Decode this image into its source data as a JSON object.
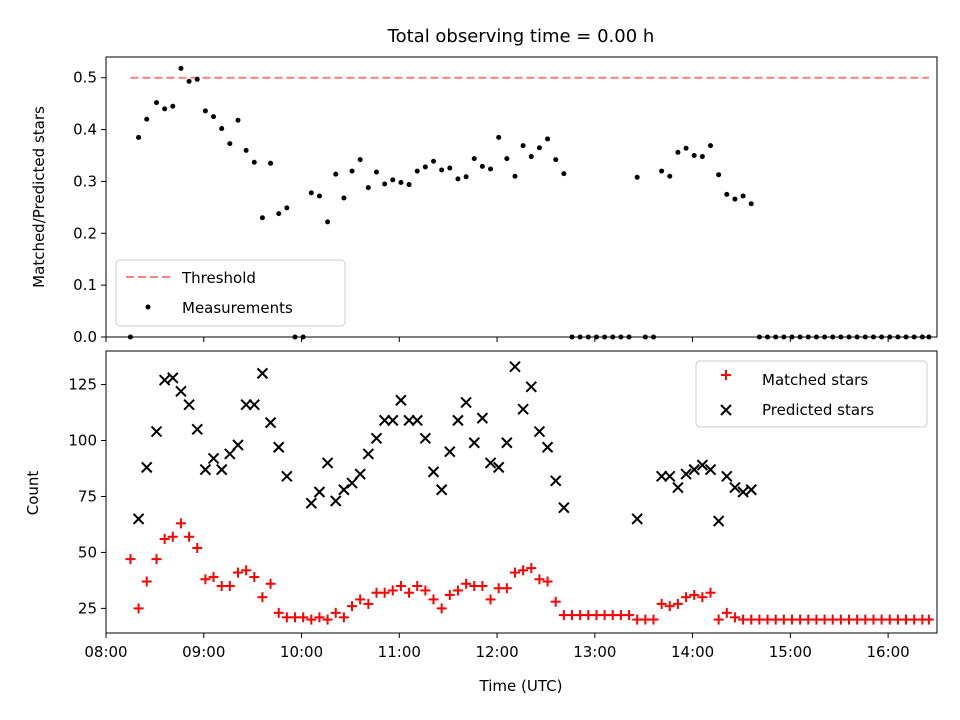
{
  "chart_data": [
    {
      "type": "scatter",
      "title": "Total observing time = 0.00 h",
      "xlabel": "",
      "ylabel": "Matched/Predicted stars",
      "xlim": [
        "08:00",
        "16:30"
      ],
      "ylim": [
        0,
        0.54
      ],
      "yticks": [
        "0.0",
        "0.1",
        "0.2",
        "0.3",
        "0.4",
        "0.5"
      ],
      "legend_position": "lower-left",
      "threshold": {
        "name": "Threshold",
        "value": 0.5,
        "x_range": [
          "08:15",
          "16:25"
        ],
        "color": "#f4817f"
      },
      "series": [
        {
          "name": "Measurements",
          "color": "#000000",
          "points": [
            [
              "08:15",
              0.0
            ],
            [
              "08:20",
              0.385
            ],
            [
              "08:25",
              0.42
            ],
            [
              "08:31",
              0.452
            ],
            [
              "08:36",
              0.44
            ],
            [
              "08:41",
              0.445
            ],
            [
              "08:46",
              0.518
            ],
            [
              "08:51",
              0.493
            ],
            [
              "08:56",
              0.497
            ],
            [
              "09:01",
              0.436
            ],
            [
              "09:06",
              0.425
            ],
            [
              "09:11",
              0.402
            ],
            [
              "09:16",
              0.373
            ],
            [
              "09:21",
              0.418
            ],
            [
              "09:26",
              0.36
            ],
            [
              "09:31",
              0.337
            ],
            [
              "09:36",
              0.23
            ],
            [
              "09:41",
              0.335
            ],
            [
              "09:46",
              0.238
            ],
            [
              "09:51",
              0.249
            ],
            [
              "09:56",
              0.0
            ],
            [
              "10:01",
              0.0
            ],
            [
              "10:06",
              0.278
            ],
            [
              "10:11",
              0.272
            ],
            [
              "10:16",
              0.222
            ],
            [
              "10:21",
              0.314
            ],
            [
              "10:26",
              0.268
            ],
            [
              "10:31",
              0.32
            ],
            [
              "10:36",
              0.342
            ],
            [
              "10:41",
              0.288
            ],
            [
              "10:46",
              0.318
            ],
            [
              "10:51",
              0.295
            ],
            [
              "10:56",
              0.303
            ],
            [
              "11:01",
              0.298
            ],
            [
              "11:06",
              0.294
            ],
            [
              "11:11",
              0.32
            ],
            [
              "11:16",
              0.328
            ],
            [
              "11:21",
              0.339
            ],
            [
              "11:26",
              0.322
            ],
            [
              "11:31",
              0.326
            ],
            [
              "11:36",
              0.305
            ],
            [
              "11:41",
              0.309
            ],
            [
              "11:46",
              0.344
            ],
            [
              "11:51",
              0.329
            ],
            [
              "11:56",
              0.324
            ],
            [
              "12:01",
              0.385
            ],
            [
              "12:06",
              0.344
            ],
            [
              "12:11",
              0.31
            ],
            [
              "12:16",
              0.369
            ],
            [
              "12:21",
              0.348
            ],
            [
              "12:26",
              0.365
            ],
            [
              "12:31",
              0.382
            ],
            [
              "12:36",
              0.342
            ],
            [
              "12:41",
              0.315
            ],
            [
              "12:46",
              0.0
            ],
            [
              "12:51",
              0.0
            ],
            [
              "12:56",
              0.0
            ],
            [
              "13:01",
              0.0
            ],
            [
              "13:06",
              0.0
            ],
            [
              "13:11",
              0.0
            ],
            [
              "13:16",
              0.0
            ],
            [
              "13:21",
              0.0
            ],
            [
              "13:26",
              0.308
            ],
            [
              "13:31",
              0.0
            ],
            [
              "13:36",
              0.0
            ],
            [
              "13:41",
              0.32
            ],
            [
              "13:46",
              0.31
            ],
            [
              "13:51",
              0.356
            ],
            [
              "13:56",
              0.364
            ],
            [
              "14:01",
              0.35
            ],
            [
              "14:06",
              0.348
            ],
            [
              "14:11",
              0.369
            ],
            [
              "14:16",
              0.313
            ],
            [
              "14:21",
              0.275
            ],
            [
              "14:26",
              0.266
            ],
            [
              "14:31",
              0.272
            ],
            [
              "14:36",
              0.257
            ],
            [
              "14:41",
              0.0
            ],
            [
              "14:46",
              0.0
            ],
            [
              "14:51",
              0.0
            ],
            [
              "14:56",
              0.0
            ],
            [
              "15:01",
              0.0
            ],
            [
              "15:06",
              0.0
            ],
            [
              "15:11",
              0.0
            ],
            [
              "15:16",
              0.0
            ],
            [
              "15:21",
              0.0
            ],
            [
              "15:26",
              0.0
            ],
            [
              "15:31",
              0.0
            ],
            [
              "15:36",
              0.0
            ],
            [
              "15:41",
              0.0
            ],
            [
              "15:46",
              0.0
            ],
            [
              "15:51",
              0.0
            ],
            [
              "15:56",
              0.0
            ],
            [
              "16:01",
              0.0
            ],
            [
              "16:06",
              0.0
            ],
            [
              "16:11",
              0.0
            ],
            [
              "16:16",
              0.0
            ],
            [
              "16:21",
              0.0
            ],
            [
              "16:25",
              0.0
            ]
          ]
        }
      ]
    },
    {
      "type": "scatter",
      "title": "",
      "xlabel": "Time (UTC)",
      "ylabel": "Count",
      "xlim": [
        "08:00",
        "16:30"
      ],
      "ylim": [
        14,
        140
      ],
      "xticks": [
        "08:00",
        "09:00",
        "10:00",
        "11:00",
        "12:00",
        "13:00",
        "14:00",
        "15:00",
        "16:00"
      ],
      "yticks": [
        "25",
        "50",
        "75",
        "100",
        "125"
      ],
      "legend_position": "top-right",
      "series": [
        {
          "name": "Matched stars",
          "color": "#ff0000",
          "marker": "plus",
          "points": [
            [
              "08:15",
              47
            ],
            [
              "08:20",
              25
            ],
            [
              "08:25",
              37
            ],
            [
              "08:31",
              47
            ],
            [
              "08:36",
              56
            ],
            [
              "08:41",
              57
            ],
            [
              "08:46",
              63
            ],
            [
              "08:51",
              57
            ],
            [
              "08:56",
              52
            ],
            [
              "09:01",
              38
            ],
            [
              "09:06",
              39
            ],
            [
              "09:11",
              35
            ],
            [
              "09:16",
              35
            ],
            [
              "09:21",
              41
            ],
            [
              "09:26",
              42
            ],
            [
              "09:31",
              39
            ],
            [
              "09:36",
              30
            ],
            [
              "09:41",
              36
            ],
            [
              "09:46",
              23
            ],
            [
              "09:51",
              21
            ],
            [
              "09:56",
              21
            ],
            [
              "10:01",
              21
            ],
            [
              "10:06",
              20
            ],
            [
              "10:11",
              21
            ],
            [
              "10:16",
              20
            ],
            [
              "10:21",
              23
            ],
            [
              "10:26",
              21
            ],
            [
              "10:31",
              26
            ],
            [
              "10:36",
              29
            ],
            [
              "10:41",
              27
            ],
            [
              "10:46",
              32
            ],
            [
              "10:51",
              32
            ],
            [
              "10:56",
              33
            ],
            [
              "11:01",
              35
            ],
            [
              "11:06",
              32
            ],
            [
              "11:11",
              35
            ],
            [
              "11:16",
              33
            ],
            [
              "11:21",
              29
            ],
            [
              "11:26",
              25
            ],
            [
              "11:31",
              31
            ],
            [
              "11:36",
              33
            ],
            [
              "11:41",
              36
            ],
            [
              "11:46",
              35
            ],
            [
              "11:51",
              35
            ],
            [
              "11:56",
              29
            ],
            [
              "12:01",
              34
            ],
            [
              "12:06",
              34
            ],
            [
              "12:11",
              41
            ],
            [
              "12:16",
              42
            ],
            [
              "12:21",
              43
            ],
            [
              "12:26",
              38
            ],
            [
              "12:31",
              37
            ],
            [
              "12:36",
              28
            ],
            [
              "12:41",
              22
            ],
            [
              "12:46",
              22
            ],
            [
              "12:51",
              22
            ],
            [
              "12:56",
              22
            ],
            [
              "13:01",
              22
            ],
            [
              "13:06",
              22
            ],
            [
              "13:11",
              22
            ],
            [
              "13:16",
              22
            ],
            [
              "13:21",
              22
            ],
            [
              "13:26",
              20
            ],
            [
              "13:31",
              20
            ],
            [
              "13:36",
              20
            ],
            [
              "13:41",
              27
            ],
            [
              "13:46",
              26
            ],
            [
              "13:51",
              27
            ],
            [
              "13:56",
              30
            ],
            [
              "14:01",
              31
            ],
            [
              "14:06",
              30
            ],
            [
              "14:11",
              32
            ],
            [
              "14:16",
              20
            ],
            [
              "14:21",
              23
            ],
            [
              "14:26",
              21
            ],
            [
              "14:31",
              20
            ],
            [
              "14:36",
              20
            ],
            [
              "14:41",
              20
            ],
            [
              "14:46",
              20
            ],
            [
              "14:51",
              20
            ],
            [
              "14:56",
              20
            ],
            [
              "15:01",
              20
            ],
            [
              "15:06",
              20
            ],
            [
              "15:11",
              20
            ],
            [
              "15:16",
              20
            ],
            [
              "15:21",
              20
            ],
            [
              "15:26",
              20
            ],
            [
              "15:31",
              20
            ],
            [
              "15:36",
              20
            ],
            [
              "15:41",
              20
            ],
            [
              "15:46",
              20
            ],
            [
              "15:51",
              20
            ],
            [
              "15:56",
              20
            ],
            [
              "16:01",
              20
            ],
            [
              "16:06",
              20
            ],
            [
              "16:11",
              20
            ],
            [
              "16:16",
              20
            ],
            [
              "16:21",
              20
            ],
            [
              "16:25",
              20
            ]
          ]
        },
        {
          "name": "Predicted stars",
          "color": "#000000",
          "marker": "x",
          "points": [
            [
              "08:20",
              65
            ],
            [
              "08:25",
              88
            ],
            [
              "08:31",
              104
            ],
            [
              "08:36",
              127
            ],
            [
              "08:41",
              128
            ],
            [
              "08:46",
              122
            ],
            [
              "08:51",
              116
            ],
            [
              "08:56",
              105
            ],
            [
              "09:01",
              87
            ],
            [
              "09:06",
              92
            ],
            [
              "09:11",
              87
            ],
            [
              "09:16",
              94
            ],
            [
              "09:21",
              98
            ],
            [
              "09:26",
              116
            ],
            [
              "09:31",
              116
            ],
            [
              "09:36",
              130
            ],
            [
              "09:41",
              108
            ],
            [
              "09:46",
              97
            ],
            [
              "09:51",
              84
            ],
            [
              "10:06",
              72
            ],
            [
              "10:11",
              77
            ],
            [
              "10:16",
              90
            ],
            [
              "10:21",
              73
            ],
            [
              "10:26",
              78
            ],
            [
              "10:31",
              81
            ],
            [
              "10:36",
              85
            ],
            [
              "10:41",
              94
            ],
            [
              "10:46",
              101
            ],
            [
              "10:51",
              109
            ],
            [
              "10:56",
              109
            ],
            [
              "11:01",
              118
            ],
            [
              "11:06",
              109
            ],
            [
              "11:11",
              109
            ],
            [
              "11:16",
              101
            ],
            [
              "11:21",
              86
            ],
            [
              "11:26",
              78
            ],
            [
              "11:31",
              95
            ],
            [
              "11:36",
              109
            ],
            [
              "11:41",
              117
            ],
            [
              "11:46",
              99
            ],
            [
              "11:51",
              110
            ],
            [
              "11:56",
              90
            ],
            [
              "12:01",
              88
            ],
            [
              "12:06",
              99
            ],
            [
              "12:11",
              133
            ],
            [
              "12:16",
              114
            ],
            [
              "12:21",
              124
            ],
            [
              "12:26",
              104
            ],
            [
              "12:31",
              97
            ],
            [
              "12:36",
              82
            ],
            [
              "12:41",
              70
            ],
            [
              "13:26",
              65
            ],
            [
              "13:41",
              84
            ],
            [
              "13:46",
              84
            ],
            [
              "13:51",
              79
            ],
            [
              "13:56",
              85
            ],
            [
              "14:01",
              87
            ],
            [
              "14:06",
              89
            ],
            [
              "14:11",
              87
            ],
            [
              "14:16",
              64
            ],
            [
              "14:21",
              84
            ],
            [
              "14:26",
              79
            ],
            [
              "14:31",
              77
            ],
            [
              "14:36",
              78
            ]
          ]
        }
      ]
    }
  ]
}
